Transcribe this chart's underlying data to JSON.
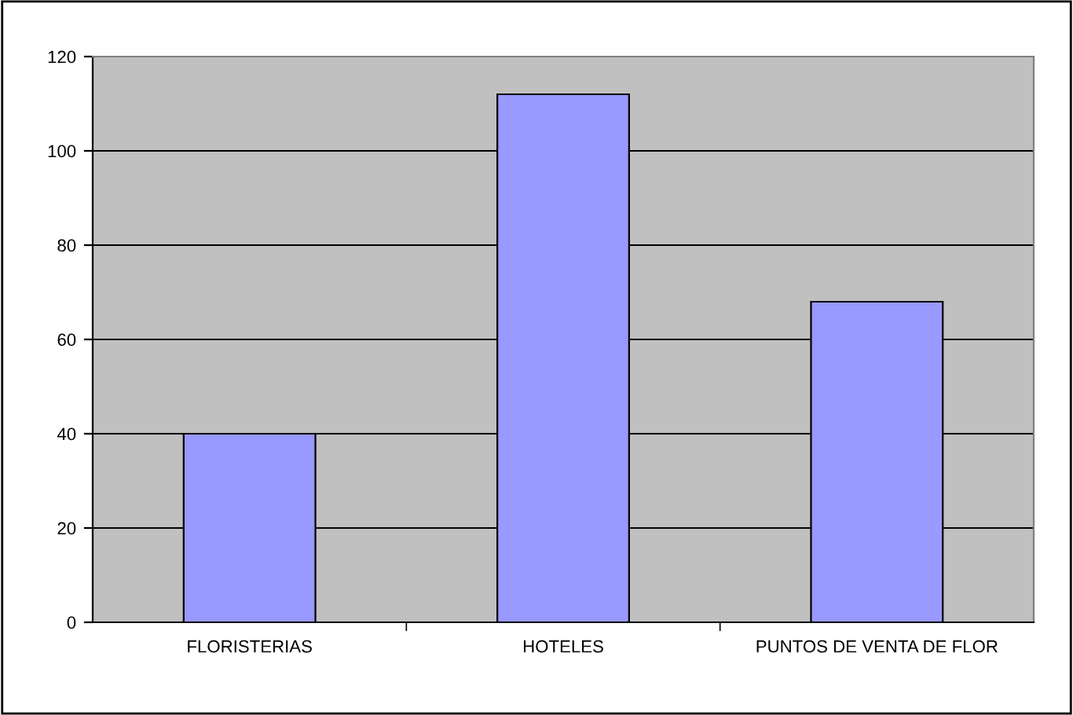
{
  "chart_data": {
    "type": "bar",
    "categories": [
      "FLORISTERIAS",
      "HOTELES",
      "PUNTOS DE VENTA DE FLOR"
    ],
    "values": [
      40,
      112,
      68
    ],
    "color": "#9999ff",
    "ylim": [
      0,
      120
    ],
    "yticks": [
      0,
      20,
      40,
      60,
      80,
      100,
      120
    ],
    "grid": "y",
    "legend": false
  }
}
